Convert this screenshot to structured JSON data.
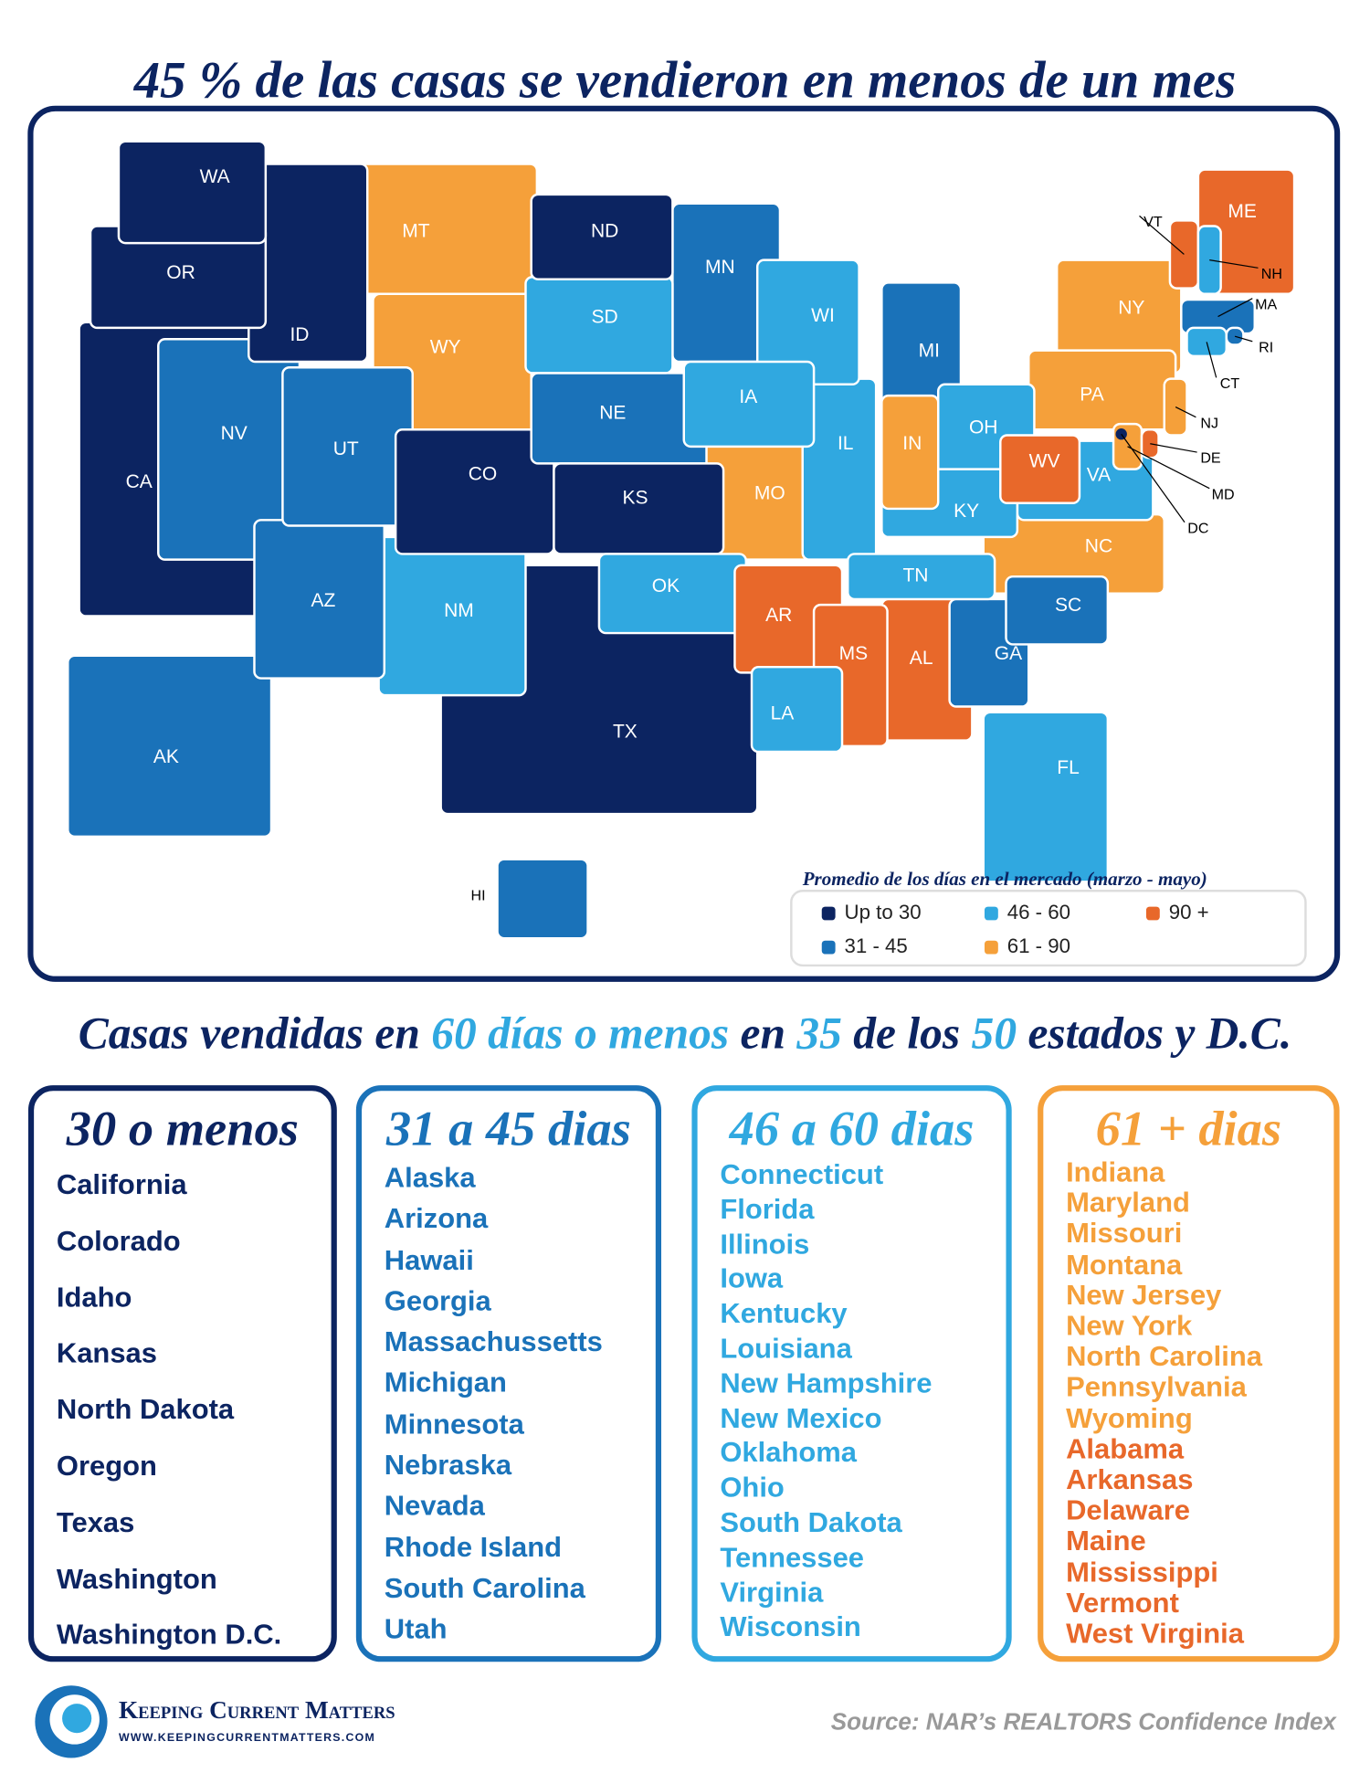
{
  "header": {
    "title": "45 % de las casas se vendieron en menos de un mes"
  },
  "map": {
    "legend": {
      "title": "Promedio de los días en el mercado",
      "title_note": "(marzo - mayo)",
      "items": [
        {
          "label": "Up to 30",
          "color": "#0c2461",
          "states": [
            "WA",
            "OR",
            "ID",
            "CA",
            "ND",
            "CO",
            "KS",
            "TX",
            "DC"
          ]
        },
        {
          "label": "31 - 45",
          "color": "#1a72b9",
          "states": [
            "AK",
            "AZ",
            "HI",
            "GA",
            "MA",
            "MI",
            "MN",
            "NE",
            "NV",
            "RI",
            "SC",
            "UT"
          ]
        },
        {
          "label": "46 - 60",
          "color": "#30a8e0",
          "states": [
            "CT",
            "FL",
            "IL",
            "IA",
            "KY",
            "LA",
            "NH",
            "NM",
            "OK",
            "OH",
            "SD",
            "TN",
            "VA",
            "WI"
          ]
        },
        {
          "label": "61 - 90",
          "color": "#f5a03a",
          "states": [
            "IN",
            "MD",
            "MO",
            "MT",
            "NJ",
            "NY",
            "NC",
            "PA",
            "WY"
          ]
        },
        {
          "label": "90 +",
          "color": "#e8682a",
          "states": [
            "AL",
            "AR",
            "DE",
            "ME",
            "MS",
            "VT",
            "WV"
          ]
        }
      ]
    }
  },
  "subtitle": [
    "Casas vendidas en ",
    "60 días o menos",
    " en ",
    "35",
    " de los ",
    "50",
    " estados y D.C."
  ],
  "columns": [
    {
      "title": "30 o menos",
      "items": [
        "California",
        "Colorado",
        "Idaho",
        "Kansas",
        "North Dakota",
        "Oregon",
        "Texas",
        "Washington",
        "Washington D.C."
      ]
    },
    {
      "title": "31 a 45 dias",
      "items": [
        "Alaska",
        "Arizona",
        "Hawaii",
        "Georgia",
        "Massachussetts",
        "Michigan",
        "Minnesota",
        "Nebraska",
        "Nevada",
        "Rhode Island",
        "South Carolina",
        "Utah"
      ]
    },
    {
      "title": "46 a 60 dias",
      "items": [
        "Connecticut",
        "Florida",
        "Illinois",
        "Iowa",
        "Kentucky",
        "Louisiana",
        "New Hampshire",
        "New Mexico",
        "Oklahoma",
        "Ohio",
        "South Dakota",
        "Tennessee",
        "Virginia",
        "Wisconsin"
      ]
    },
    {
      "title": "61 + dias",
      "items": [
        "Indiana",
        "Maryland",
        "Missouri",
        "Montana",
        "New Jersey",
        "New York",
        "North Carolina",
        "Pennsylvania",
        "Wyoming",
        "Alabama",
        "Arkansas",
        "Delaware",
        "Maine",
        "Mississippi",
        "Vermont",
        "West Virginia"
      ]
    }
  ],
  "footer": {
    "brand": "Keeping Current Matters",
    "url": "www.keepingcurrentmatters.com",
    "source": "Source: NAR’s REALTORS Confidence Index"
  }
}
